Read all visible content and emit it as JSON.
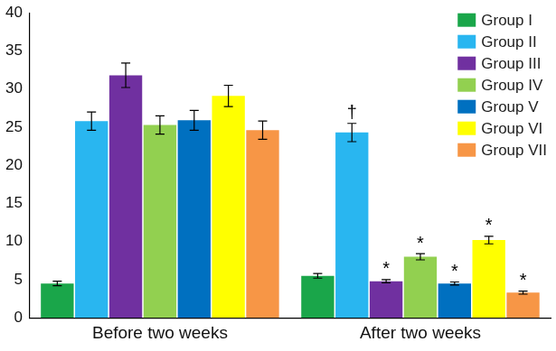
{
  "chart_data": {
    "type": "bar",
    "categories": [
      "Before two weeks",
      "After two weeks"
    ],
    "series": [
      {
        "name": "Group I",
        "color": "#1aa64a",
        "values": [
          4.5,
          5.5
        ],
        "errors": [
          0.3,
          0.3
        ],
        "annotations": [
          null,
          null
        ]
      },
      {
        "name": "Group II",
        "color": "#29b6f0",
        "values": [
          25.8,
          24.3
        ],
        "errors": [
          1.2,
          1.2
        ],
        "annotations": [
          null,
          "†"
        ]
      },
      {
        "name": "Group III",
        "color": "#7030a0",
        "values": [
          31.8,
          4.8
        ],
        "errors": [
          1.6,
          0.2
        ],
        "annotations": [
          null,
          "*"
        ]
      },
      {
        "name": "Group IV",
        "color": "#92d050",
        "values": [
          25.3,
          8.0
        ],
        "errors": [
          1.2,
          0.4
        ],
        "annotations": [
          null,
          "*"
        ]
      },
      {
        "name": "Group V",
        "color": "#0070c0",
        "values": [
          25.9,
          4.5
        ],
        "errors": [
          1.3,
          0.2
        ],
        "annotations": [
          null,
          "*"
        ]
      },
      {
        "name": "Group VI",
        "color": "#ffff00",
        "values": [
          29.1,
          10.2
        ],
        "errors": [
          1.4,
          0.5
        ],
        "annotations": [
          null,
          "*"
        ]
      },
      {
        "name": "Group VII",
        "color": "#f79646",
        "values": [
          24.6,
          3.3
        ],
        "errors": [
          1.2,
          0.2
        ],
        "annotations": [
          null,
          "*"
        ]
      }
    ],
    "ylim": [
      0,
      40
    ],
    "yticks": [
      0,
      5,
      10,
      15,
      20,
      25,
      30,
      35,
      40
    ],
    "grid": false,
    "legend": "top right"
  }
}
